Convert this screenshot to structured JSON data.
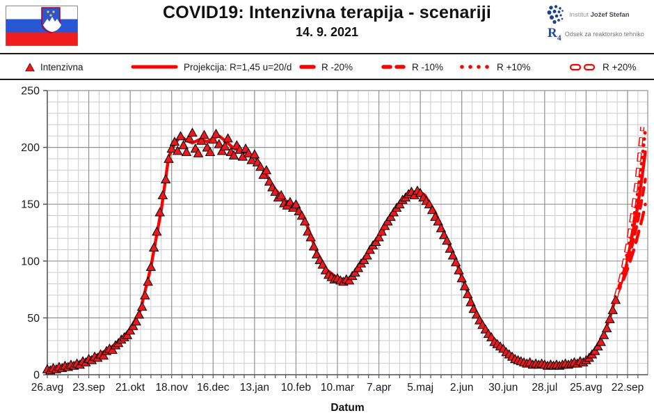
{
  "header": {
    "title": "COVID19: Intenzivna terapija - scenariji",
    "date": "14. 9. 2021",
    "institute": {
      "prefix": "Institut",
      "name": "Jožef Stefan",
      "r4": "R",
      "r4_sub": "4",
      "department": "Odsek za reaktorsko tehniko"
    }
  },
  "legend": [
    {
      "label": "Intenzivna"
    },
    {
      "label": "Projekcija: R=1,45 u=20/d"
    },
    {
      "label": "R -20%"
    },
    {
      "label": "R -10%"
    },
    {
      "label": "R +10%"
    },
    {
      "label": "R +20%"
    }
  ],
  "colors": {
    "accent_red": "#ff0000",
    "triangle_red": "#e8191f",
    "flag_blue": "#2857d4",
    "flag_red": "#ef1d1d",
    "logo_blue": "#1c3f93",
    "grid_minor": "#cdcdcd",
    "grid_major": "#909090",
    "text": "#19191f"
  },
  "chart_data": {
    "type": "line",
    "title": "COVID19: Intenzivna terapija - scenariji",
    "subtitle": "14. 9. 2021",
    "xlabel": "Datum",
    "ylabel": "",
    "ylim": [
      0,
      250
    ],
    "y_major_ticks": [
      0,
      50,
      100,
      150,
      200,
      250
    ],
    "y_minor_step": 10,
    "x_tick_labels": [
      "26.avg",
      "23.sep",
      "21.okt",
      "18.nov",
      "16.dec",
      "13.jan",
      "10.feb",
      "10.mar",
      "7.apr",
      "5.maj",
      "2.jun",
      "30.jun",
      "28.jul",
      "25.avg",
      "22.sep"
    ],
    "x_major_interval_days": 28,
    "x_minor_interval_days": 7,
    "x_total_days": 406,
    "grid": true,
    "legend_position": "top",
    "series": [
      {
        "name": "Intenzivna",
        "style": "triangles",
        "color": "#e8191f",
        "points": [
          [
            0,
            5
          ],
          [
            2,
            4
          ],
          [
            4,
            6
          ],
          [
            6,
            5
          ],
          [
            8,
            7
          ],
          [
            10,
            6
          ],
          [
            12,
            8
          ],
          [
            14,
            7
          ],
          [
            16,
            9
          ],
          [
            18,
            8
          ],
          [
            20,
            10
          ],
          [
            22,
            9
          ],
          [
            24,
            12
          ],
          [
            26,
            11
          ],
          [
            28,
            14
          ],
          [
            30,
            13
          ],
          [
            32,
            16
          ],
          [
            34,
            15
          ],
          [
            36,
            18
          ],
          [
            38,
            17
          ],
          [
            40,
            21
          ],
          [
            42,
            23
          ],
          [
            44,
            22
          ],
          [
            46,
            26
          ],
          [
            48,
            28
          ],
          [
            50,
            31
          ],
          [
            52,
            33
          ],
          [
            54,
            35
          ],
          [
            56,
            39
          ],
          [
            58,
            43
          ],
          [
            60,
            47
          ],
          [
            62,
            53
          ],
          [
            64,
            60
          ],
          [
            66,
            70
          ],
          [
            68,
            82
          ],
          [
            70,
            95
          ],
          [
            72,
            112
          ],
          [
            74,
            126
          ],
          [
            76,
            143
          ],
          [
            78,
            158
          ],
          [
            80,
            172
          ],
          [
            82,
            190
          ],
          [
            84,
            199
          ],
          [
            86,
            205
          ],
          [
            88,
            197
          ],
          [
            90,
            210
          ],
          [
            92,
            202
          ],
          [
            94,
            196
          ],
          [
            96,
            208
          ],
          [
            98,
            213
          ],
          [
            100,
            199
          ],
          [
            102,
            195
          ],
          [
            104,
            206
          ],
          [
            106,
            211
          ],
          [
            108,
            200
          ],
          [
            110,
            196
          ],
          [
            112,
            207
          ],
          [
            114,
            212
          ],
          [
            116,
            203
          ],
          [
            118,
            197
          ],
          [
            120,
            201
          ],
          [
            122,
            208
          ],
          [
            124,
            196
          ],
          [
            126,
            193
          ],
          [
            128,
            202
          ],
          [
            130,
            198
          ],
          [
            132,
            192
          ],
          [
            134,
            199
          ],
          [
            136,
            195
          ],
          [
            138,
            189
          ],
          [
            140,
            194
          ],
          [
            142,
            187
          ],
          [
            144,
            183
          ],
          [
            146,
            176
          ],
          [
            148,
            180
          ],
          [
            150,
            170
          ],
          [
            152,
            165
          ],
          [
            154,
            161
          ],
          [
            156,
            156
          ],
          [
            158,
            158
          ],
          [
            160,
            151
          ],
          [
            162,
            149
          ],
          [
            164,
            152
          ],
          [
            166,
            147
          ],
          [
            168,
            150
          ],
          [
            170,
            144
          ],
          [
            172,
            140
          ],
          [
            174,
            135
          ],
          [
            176,
            126
          ],
          [
            178,
            121
          ],
          [
            180,
            113
          ],
          [
            182,
            106
          ],
          [
            184,
            101
          ],
          [
            186,
            97
          ],
          [
            188,
            92
          ],
          [
            190,
            88
          ],
          [
            192,
            86
          ],
          [
            194,
            84
          ],
          [
            196,
            85
          ],
          [
            198,
            83
          ],
          [
            200,
            82
          ],
          [
            202,
            84
          ],
          [
            204,
            83
          ],
          [
            206,
            87
          ],
          [
            208,
            90
          ],
          [
            210,
            94
          ],
          [
            212,
            98
          ],
          [
            214,
            101
          ],
          [
            216,
            105
          ],
          [
            218,
            110
          ],
          [
            220,
            114
          ],
          [
            222,
            117
          ],
          [
            224,
            121
          ],
          [
            226,
            126
          ],
          [
            228,
            131
          ],
          [
            230,
            135
          ],
          [
            232,
            139
          ],
          [
            234,
            143
          ],
          [
            236,
            147
          ],
          [
            238,
            150
          ],
          [
            240,
            154
          ],
          [
            242,
            156
          ],
          [
            244,
            159
          ],
          [
            246,
            161
          ],
          [
            248,
            158
          ],
          [
            250,
            162
          ],
          [
            252,
            160
          ],
          [
            254,
            156
          ],
          [
            256,
            153
          ],
          [
            258,
            150
          ],
          [
            260,
            145
          ],
          [
            262,
            139
          ],
          [
            264,
            135
          ],
          [
            266,
            129
          ],
          [
            268,
            123
          ],
          [
            270,
            118
          ],
          [
            272,
            111
          ],
          [
            274,
            105
          ],
          [
            276,
            99
          ],
          [
            278,
            92
          ],
          [
            280,
            85
          ],
          [
            282,
            78
          ],
          [
            284,
            71
          ],
          [
            286,
            64
          ],
          [
            288,
            58
          ],
          [
            290,
            53
          ],
          [
            292,
            48
          ],
          [
            294,
            44
          ],
          [
            296,
            40
          ],
          [
            298,
            36
          ],
          [
            300,
            33
          ],
          [
            302,
            29
          ],
          [
            304,
            27
          ],
          [
            306,
            25
          ],
          [
            308,
            23
          ],
          [
            310,
            20
          ],
          [
            312,
            18
          ],
          [
            314,
            16
          ],
          [
            316,
            14
          ],
          [
            318,
            13
          ],
          [
            320,
            12
          ],
          [
            322,
            11
          ],
          [
            324,
            10
          ],
          [
            326,
            11
          ],
          [
            328,
            9
          ],
          [
            330,
            10
          ],
          [
            332,
            9
          ],
          [
            334,
            10
          ],
          [
            336,
            9
          ],
          [
            338,
            8
          ],
          [
            340,
            9
          ],
          [
            342,
            8
          ],
          [
            344,
            9
          ],
          [
            346,
            8
          ],
          [
            348,
            9
          ],
          [
            350,
            10
          ],
          [
            352,
            9
          ],
          [
            354,
            10
          ],
          [
            356,
            11
          ],
          [
            358,
            10
          ],
          [
            360,
            12
          ],
          [
            362,
            11
          ],
          [
            364,
            13
          ],
          [
            366,
            15
          ],
          [
            368,
            18
          ],
          [
            370,
            21
          ],
          [
            372,
            25
          ],
          [
            374,
            29
          ],
          [
            376,
            35
          ],
          [
            378,
            41
          ],
          [
            380,
            49
          ],
          [
            382,
            57
          ],
          [
            384,
            66
          ]
        ]
      },
      {
        "name": "Projekcija: R=1,45 u=20/d",
        "style": "solid",
        "color": "#ff0000",
        "points": [
          [
            0,
            5
          ],
          [
            7,
            6
          ],
          [
            14,
            8
          ],
          [
            21,
            10
          ],
          [
            28,
            14
          ],
          [
            35,
            18
          ],
          [
            42,
            23
          ],
          [
            49,
            30
          ],
          [
            56,
            40
          ],
          [
            63,
            57
          ],
          [
            70,
            95
          ],
          [
            77,
            145
          ],
          [
            82,
            192
          ],
          [
            86,
            203
          ],
          [
            90,
            210
          ],
          [
            94,
            206
          ],
          [
            98,
            204
          ],
          [
            103,
            207
          ],
          [
            108,
            205
          ],
          [
            112,
            208
          ],
          [
            116,
            210
          ],
          [
            120,
            206
          ],
          [
            126,
            199
          ],
          [
            133,
            196
          ],
          [
            140,
            192
          ],
          [
            147,
            178
          ],
          [
            154,
            163
          ],
          [
            161,
            153
          ],
          [
            168,
            149
          ],
          [
            175,
            133
          ],
          [
            182,
            108
          ],
          [
            189,
            92
          ],
          [
            196,
            85
          ],
          [
            203,
            83
          ],
          [
            210,
            93
          ],
          [
            217,
            107
          ],
          [
            224,
            120
          ],
          [
            231,
            136
          ],
          [
            238,
            149
          ],
          [
            245,
            158
          ],
          [
            250,
            162
          ],
          [
            255,
            158
          ],
          [
            262,
            143
          ],
          [
            269,
            122
          ],
          [
            276,
            100
          ],
          [
            283,
            76
          ],
          [
            290,
            54
          ],
          [
            297,
            39
          ],
          [
            304,
            28
          ],
          [
            311,
            20
          ],
          [
            318,
            13
          ],
          [
            325,
            10
          ],
          [
            332,
            9
          ],
          [
            339,
            8
          ],
          [
            346,
            8
          ],
          [
            353,
            9
          ],
          [
            360,
            11
          ],
          [
            364,
            13
          ],
          [
            370,
            22
          ],
          [
            376,
            36
          ],
          [
            380,
            50
          ],
          [
            384,
            68
          ],
          [
            386,
            76
          ],
          [
            388,
            84
          ],
          [
            390,
            93
          ],
          [
            392,
            104
          ],
          [
            394,
            115
          ],
          [
            396,
            128
          ],
          [
            398,
            142
          ],
          [
            400,
            158
          ],
          [
            402,
            176
          ],
          [
            404,
            196
          ]
        ]
      },
      {
        "name": "R -20%",
        "style": "dash-long",
        "color": "#ff0000",
        "points": [
          [
            384,
            68
          ],
          [
            386,
            74
          ],
          [
            388,
            80
          ],
          [
            390,
            86
          ],
          [
            392,
            93
          ],
          [
            394,
            101
          ],
          [
            396,
            109
          ],
          [
            398,
            118
          ],
          [
            400,
            128
          ],
          [
            402,
            138
          ],
          [
            404,
            150
          ]
        ]
      },
      {
        "name": "R -10%",
        "style": "dash",
        "color": "#ff0000",
        "points": [
          [
            384,
            68
          ],
          [
            386,
            75
          ],
          [
            388,
            82
          ],
          [
            390,
            90
          ],
          [
            392,
            98
          ],
          [
            394,
            108
          ],
          [
            396,
            119
          ],
          [
            398,
            130
          ],
          [
            400,
            143
          ],
          [
            402,
            157
          ],
          [
            404,
            172
          ]
        ]
      },
      {
        "name": "R +10%",
        "style": "dots",
        "color": "#ff0000",
        "points": [
          [
            384,
            68
          ],
          [
            386,
            76
          ],
          [
            388,
            86
          ],
          [
            390,
            96
          ],
          [
            392,
            108
          ],
          [
            394,
            121
          ],
          [
            396,
            136
          ],
          [
            398,
            152
          ],
          [
            400,
            171
          ],
          [
            402,
            192
          ],
          [
            404,
            215
          ]
        ]
      },
      {
        "name": "R +20%",
        "style": "hollow",
        "color": "#ff0000",
        "points": [
          [
            384,
            68
          ],
          [
            386,
            77
          ],
          [
            388,
            88
          ],
          [
            390,
            100
          ],
          [
            392,
            114
          ],
          [
            394,
            130
          ],
          [
            396,
            148
          ],
          [
            398,
            168
          ],
          [
            400,
            192
          ],
          [
            402,
            218
          ]
        ]
      }
    ]
  }
}
